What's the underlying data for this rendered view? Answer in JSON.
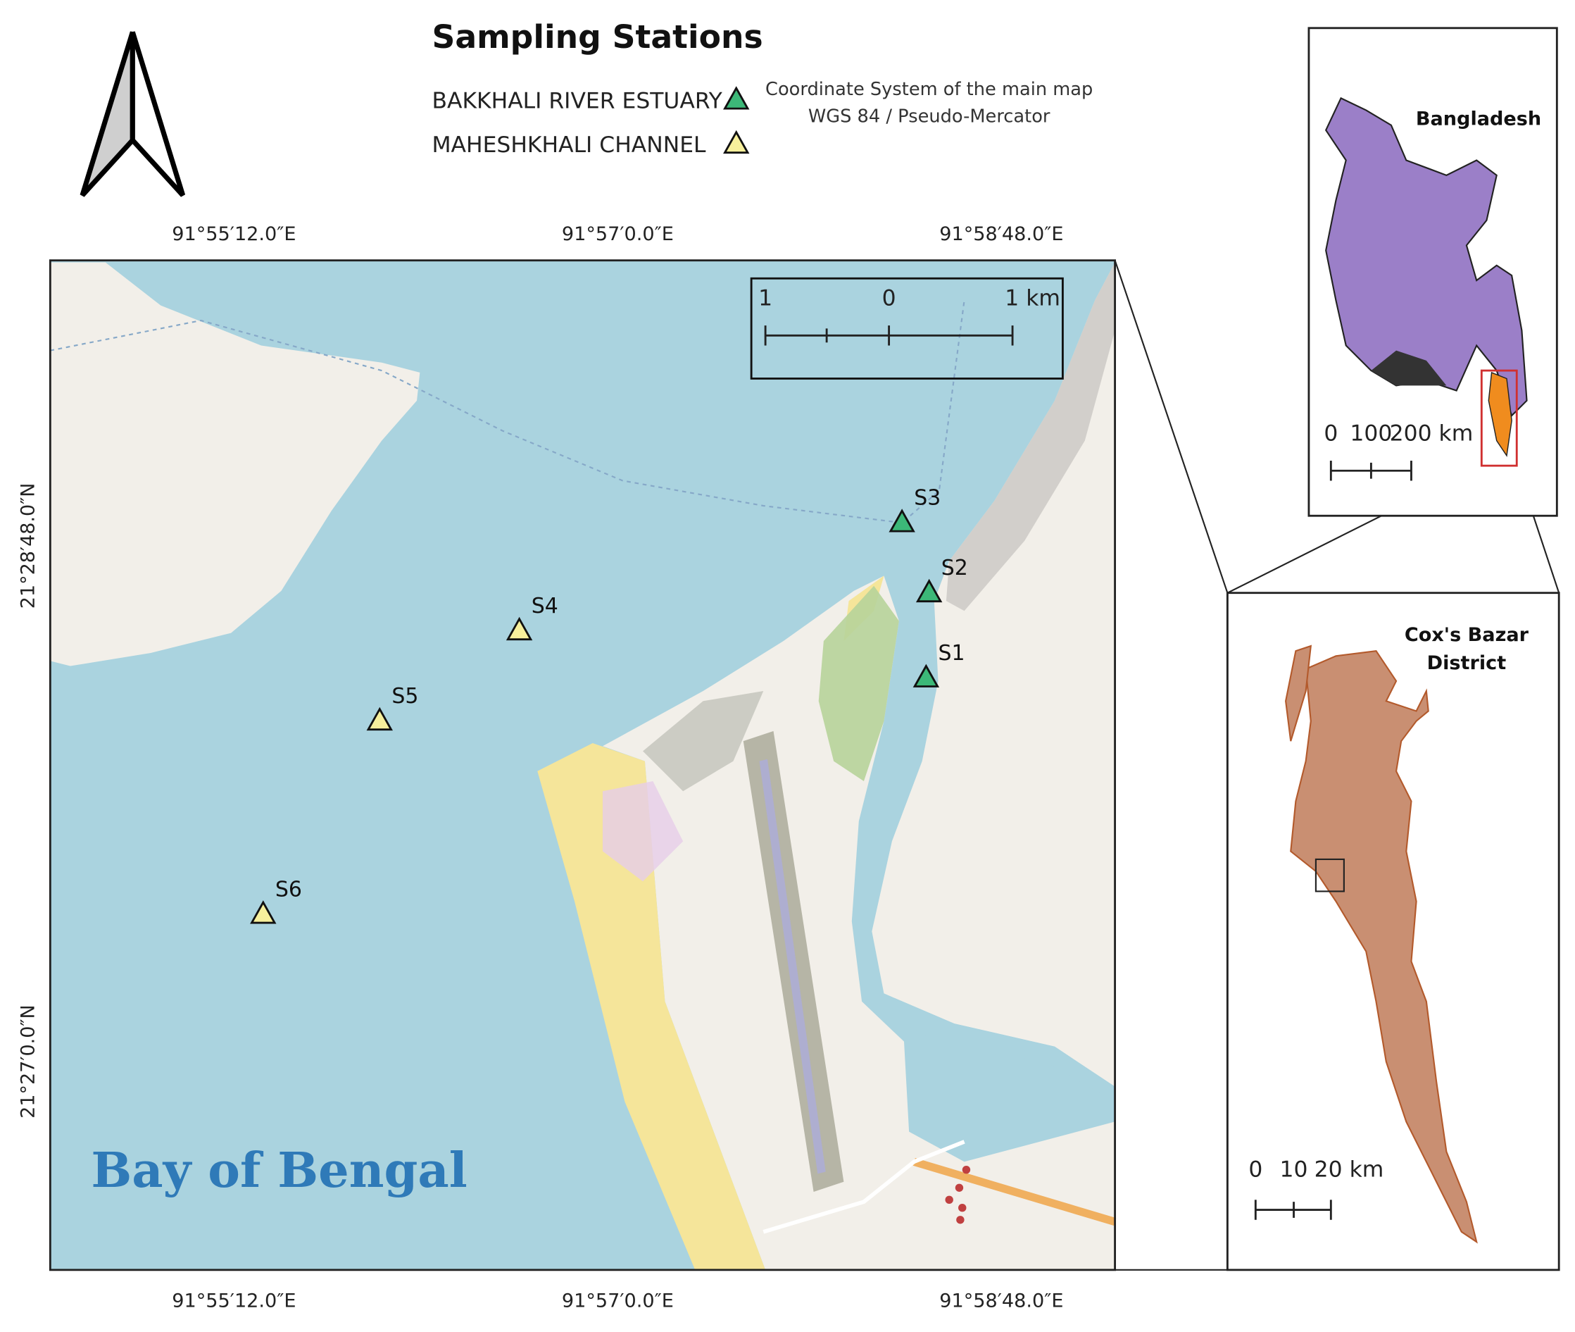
{
  "legend": {
    "title": "Sampling Stations",
    "items": [
      {
        "label": "BAKKHALI RIVER ESTUARY",
        "color": "#3cb878",
        "stations": [
          "S1",
          "S2",
          "S3"
        ]
      },
      {
        "label": "MAHESHKHALI CHANNEL",
        "color": "#f7f09c",
        "stations": [
          "S4",
          "S5",
          "S6"
        ]
      }
    ]
  },
  "crs": {
    "line1": "Coordinate System of the main map",
    "line2": "WGS 84 / Pseudo-Mercator"
  },
  "main_map": {
    "x_labels": [
      "91°55′12.0″E",
      "91°57′0.0″E",
      "91°58′48.0″E"
    ],
    "y_labels": [
      "21°28′48.0″N",
      "21°27′0.0″N"
    ],
    "scale_labels": [
      "1",
      "0",
      "1 km"
    ],
    "sea_label": "Bay of Bengal"
  },
  "inset_country": {
    "label": "Bangladesh",
    "scale_labels": [
      "0",
      "100",
      "200 km"
    ]
  },
  "inset_district": {
    "label_lines": [
      "Cox's Bazar",
      "District"
    ],
    "scale_labels": [
      "0",
      "10",
      "20 km"
    ]
  }
}
